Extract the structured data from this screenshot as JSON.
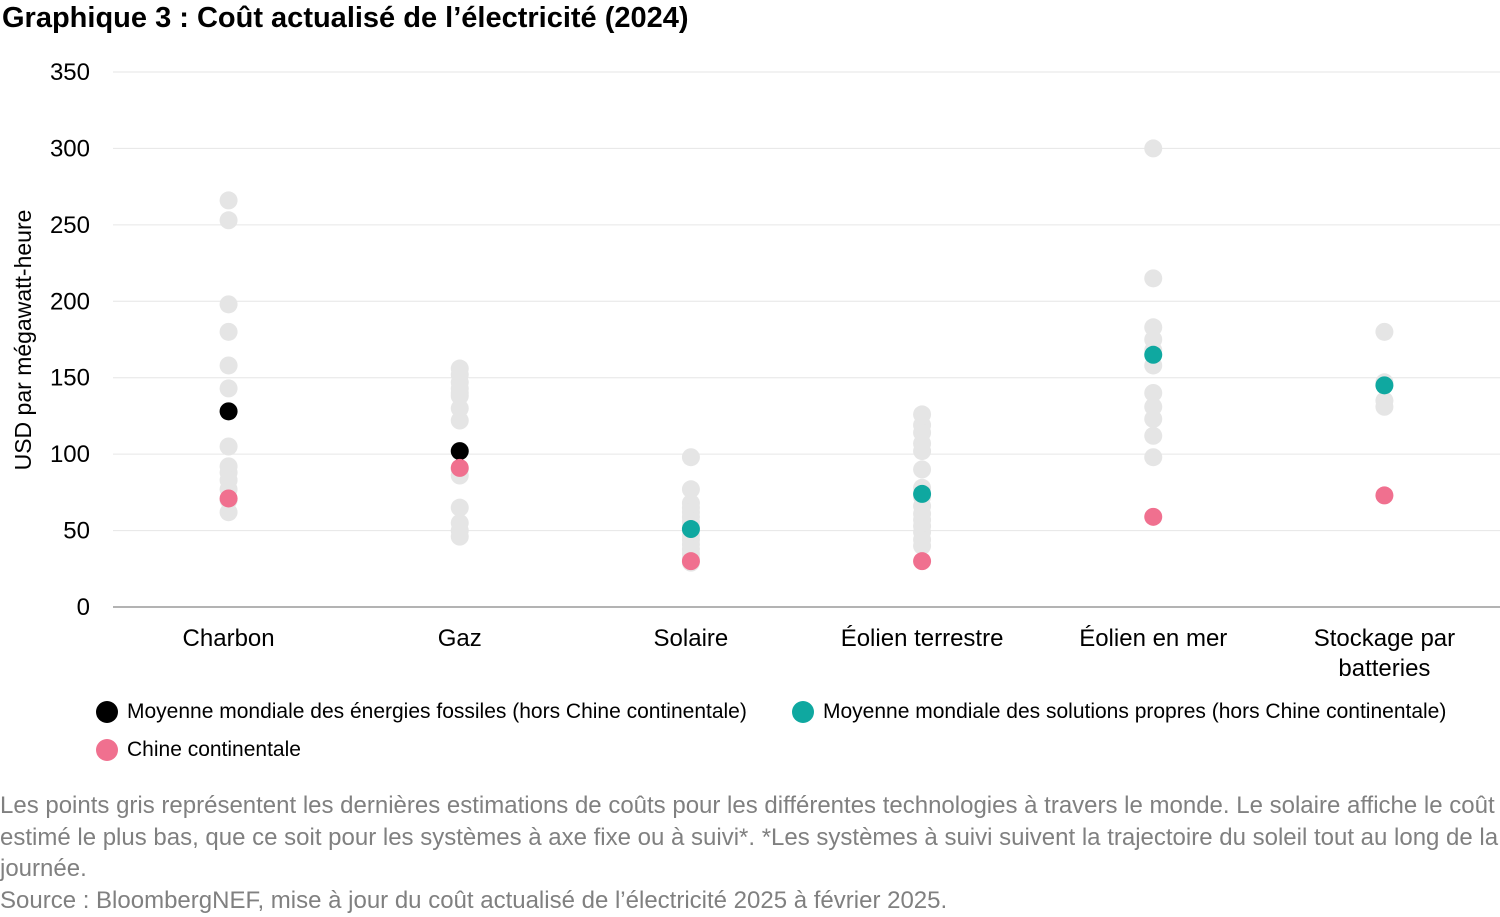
{
  "title": "Graphique 3 : Coût actualisé de l’électricité (2024)",
  "colors": {
    "gray_dots": "#e5e5e5",
    "fossil_avg": "#000000",
    "clean_avg": "#0fa8a0",
    "china": "#f0708f",
    "gridline": "#e6e6e6",
    "axis": "#9a9a9a"
  },
  "legend": [
    {
      "label": "Moyenne mondiale des énergies fossiles (hors Chine continentale)",
      "color": "#000000"
    },
    {
      "label": "Moyenne mondiale des solutions propres (hors Chine continentale)",
      "color": "#0fa8a0"
    },
    {
      "label": "Chine continentale",
      "color": "#f0708f"
    }
  ],
  "chart_data": {
    "type": "scatter",
    "ylabel": "USD par mégawatt-heure",
    "xlabel": "",
    "ylim": [
      0,
      350
    ],
    "yticks": [
      0,
      50,
      100,
      150,
      200,
      250,
      300,
      350
    ],
    "grid": true,
    "legend_position": "bottom",
    "categories": [
      {
        "label_lines": [
          "Charbon"
        ]
      },
      {
        "label_lines": [
          "Gaz"
        ]
      },
      {
        "label_lines": [
          "Solaire"
        ]
      },
      {
        "label_lines": [
          "Éolien terrestre"
        ]
      },
      {
        "label_lines": [
          "Éolien en mer"
        ]
      },
      {
        "label_lines": [
          "Stockage par",
          "batteries"
        ]
      }
    ],
    "gray_estimates": [
      [
        266,
        253,
        198,
        180,
        158,
        143,
        128,
        105,
        92,
        88,
        83,
        77,
        70,
        62
      ],
      [
        156,
        152,
        147,
        143,
        140,
        138,
        130,
        122,
        90,
        86,
        65,
        55,
        50,
        46
      ],
      [
        98,
        77,
        68,
        65,
        62,
        59,
        56,
        53,
        50,
        47,
        44,
        41,
        38,
        35,
        32,
        29
      ],
      [
        126,
        119,
        114,
        107,
        102,
        90,
        78,
        72,
        66,
        61,
        57,
        53,
        49,
        44,
        40
      ],
      [
        300,
        215,
        183,
        175,
        168,
        158,
        140,
        131,
        123,
        112,
        98
      ],
      [
        180,
        147,
        135,
        131
      ]
    ],
    "series": [
      {
        "name": "Moyenne mondiale des énergies fossiles (hors Chine continentale)",
        "values": [
          128,
          102,
          null,
          null,
          null,
          null
        ]
      },
      {
        "name": "Moyenne mondiale des solutions propres (hors Chine continentale)",
        "values": [
          null,
          null,
          51,
          74,
          165,
          145
        ]
      },
      {
        "name": "Chine continentale",
        "values": [
          71,
          91,
          30,
          30,
          59,
          73
        ]
      }
    ]
  },
  "notes": [
    "Les points gris représentent les dernières estimations de coûts pour les différentes technologies à travers le monde. Le solaire affiche le coût estimé le plus bas, que ce soit pour les systèmes à axe fixe ou à suivi*. *Les systèmes à suivi suivent la trajectoire du soleil tout au long de la journée.",
    "Source : BloombergNEF, mise à jour du coût actualisé de l’électricité 2025 à février 2025."
  ]
}
